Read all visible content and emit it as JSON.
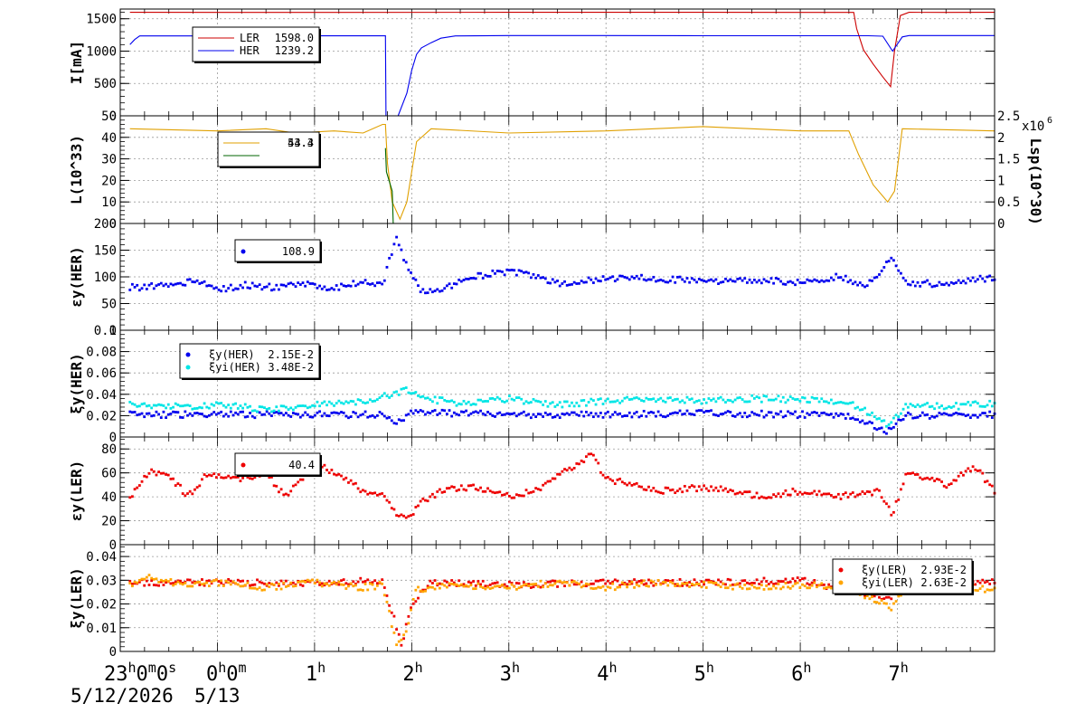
{
  "chart_data": [
    {
      "type": "line",
      "ylabel": "I[mA]",
      "ylim": [
        0,
        1650
      ],
      "yticks": [
        0,
        500,
        1000,
        1500
      ],
      "grid": true,
      "legend": {
        "placement": "top-left",
        "entries": [
          {
            "name": "LER",
            "value": "1598.0",
            "color": "#cc0000"
          },
          {
            "name": "HER",
            "value": "1239.2",
            "color": "#0000ee"
          }
        ]
      },
      "series": [
        {
          "name": "LER",
          "color": "#cc0000",
          "style": "line",
          "points": [
            [
              -0.9,
              1600
            ],
            [
              1.0,
              1598
            ],
            [
              3.0,
              1600
            ],
            [
              5.0,
              1599
            ],
            [
              6.55,
              1598
            ],
            [
              6.58,
              1350
            ],
            [
              6.65,
              1020
            ],
            [
              6.75,
              800
            ],
            [
              6.85,
              600
            ],
            [
              6.93,
              450
            ],
            [
              6.97,
              1000
            ],
            [
              7.03,
              1550
            ],
            [
              7.12,
              1600
            ],
            [
              7.5,
              1598
            ],
            [
              8.0,
              1600
            ]
          ]
        },
        {
          "name": "HER",
          "color": "#0000ee",
          "style": "line",
          "points": [
            [
              -0.9,
              1100
            ],
            [
              -0.85,
              1180
            ],
            [
              -0.8,
              1235
            ],
            [
              0.5,
              1235
            ],
            [
              1.0,
              1236
            ],
            [
              1.73,
              1236
            ],
            [
              1.735,
              0
            ],
            [
              1.86,
              0
            ],
            [
              1.95,
              350
            ],
            [
              2.0,
              700
            ],
            [
              2.05,
              950
            ],
            [
              2.1,
              1050
            ],
            [
              2.2,
              1130
            ],
            [
              2.3,
              1200
            ],
            [
              2.45,
              1235
            ],
            [
              3.0,
              1240
            ],
            [
              4.0,
              1240
            ],
            [
              5.0,
              1238
            ],
            [
              6.0,
              1238
            ],
            [
              6.7,
              1238
            ],
            [
              6.85,
              1230
            ],
            [
              6.95,
              1000
            ],
            [
              7.05,
              1220
            ],
            [
              7.12,
              1240
            ],
            [
              8.0,
              1240
            ]
          ]
        }
      ]
    },
    {
      "type": "line",
      "ylabel": "L(10^33)",
      "ylabel_right": "Lsp(10^30)",
      "right_multiplier": "x10^6",
      "ylim": [
        0,
        50
      ],
      "yticks": [
        0,
        10,
        20,
        30,
        40,
        50
      ],
      "right_ylim": [
        0,
        2.5
      ],
      "right_yticks": [
        "0",
        "0.5",
        "1",
        "1.5",
        "2",
        "2.5"
      ],
      "grid": true,
      "legend": {
        "placement": "top-left",
        "entries": [
          {
            "name": "",
            "value": "53.3",
            "color": "#e0a000"
          },
          {
            "name": "",
            "value": "44.4",
            "color": "#006600"
          }
        ]
      },
      "series": [
        {
          "name": "L",
          "color": "#e0a000",
          "style": "line",
          "points": [
            [
              -0.9,
              44
            ],
            [
              0.0,
              43
            ],
            [
              0.5,
              44
            ],
            [
              0.8,
              42
            ],
            [
              1.2,
              43
            ],
            [
              1.5,
              42
            ],
            [
              1.7,
              46
            ],
            [
              1.73,
              46
            ],
            [
              1.75,
              28
            ],
            [
              1.8,
              10
            ],
            [
              1.88,
              2
            ],
            [
              1.95,
              10
            ],
            [
              2.05,
              38
            ],
            [
              2.2,
              44
            ],
            [
              3.0,
              42
            ],
            [
              4.0,
              43
            ],
            [
              5.0,
              45
            ],
            [
              6.0,
              43
            ],
            [
              6.5,
              43
            ],
            [
              6.6,
              32
            ],
            [
              6.75,
              18
            ],
            [
              6.9,
              10
            ],
            [
              6.97,
              15
            ],
            [
              7.05,
              44
            ],
            [
              8.0,
              43
            ]
          ]
        },
        {
          "name": "Lsp",
          "color": "#006600",
          "style": "line",
          "points": [
            [
              1.73,
              35
            ],
            [
              1.74,
              24
            ],
            [
              1.78,
              18
            ],
            [
              1.8,
              15
            ],
            [
              1.81,
              0
            ]
          ]
        }
      ]
    },
    {
      "type": "scatter",
      "ylabel": "εy(HER)",
      "ylim": [
        0,
        200
      ],
      "yticks": [
        0,
        50,
        100,
        150,
        200
      ],
      "grid": true,
      "legend": {
        "placement": "top-left",
        "entries": [
          {
            "name": "",
            "value": "108.9",
            "color": "#0000ee"
          }
        ]
      },
      "series": [
        {
          "name": "emittance HER",
          "color": "#0000ee",
          "points": [
            [
              -0.9,
              80
            ],
            [
              -0.4,
              85
            ],
            [
              -0.2,
              95
            ],
            [
              0.0,
              75
            ],
            [
              0.3,
              85
            ],
            [
              0.6,
              80
            ],
            [
              0.9,
              85
            ],
            [
              1.2,
              80
            ],
            [
              1.5,
              90
            ],
            [
              1.7,
              85
            ],
            [
              1.85,
              180
            ],
            [
              1.9,
              140
            ],
            [
              2.0,
              100
            ],
            [
              2.1,
              75
            ],
            [
              2.3,
              72
            ],
            [
              2.5,
              95
            ],
            [
              2.8,
              105
            ],
            [
              3.0,
              110
            ],
            [
              3.3,
              100
            ],
            [
              3.6,
              85
            ],
            [
              3.9,
              95
            ],
            [
              4.3,
              100
            ],
            [
              4.7,
              95
            ],
            [
              5.0,
              90
            ],
            [
              5.5,
              95
            ],
            [
              6.0,
              90
            ],
            [
              6.4,
              100
            ],
            [
              6.7,
              85
            ],
            [
              6.95,
              135
            ],
            [
              7.1,
              90
            ],
            [
              7.5,
              85
            ],
            [
              8.0,
              100
            ]
          ]
        }
      ]
    },
    {
      "type": "scatter",
      "ylabel": "ξy(HER)",
      "ylim": [
        0,
        0.1
      ],
      "yticks": [
        0,
        0.02,
        0.04,
        0.06,
        0.08,
        0.1
      ],
      "grid": true,
      "legend": {
        "placement": "top-left",
        "entries": [
          {
            "name": "ξy(HER)",
            "value": "2.15E-2",
            "color": "#0000ee"
          },
          {
            "name": "ξyi(HER)",
            "value": "3.48E-2",
            "color": "#00e5e5"
          }
        ]
      },
      "series": [
        {
          "name": "ξy(HER)",
          "color": "#0000ee",
          "points": [
            [
              -0.9,
              0.021
            ],
            [
              0.5,
              0.021
            ],
            [
              1.0,
              0.021
            ],
            [
              1.7,
              0.021
            ],
            [
              1.85,
              0.012
            ],
            [
              2.0,
              0.024
            ],
            [
              2.5,
              0.022
            ],
            [
              3.0,
              0.021
            ],
            [
              4.0,
              0.021
            ],
            [
              5.0,
              0.022
            ],
            [
              6.0,
              0.021
            ],
            [
              6.5,
              0.02
            ],
            [
              6.75,
              0.01
            ],
            [
              6.9,
              0.005
            ],
            [
              7.1,
              0.02
            ],
            [
              8.0,
              0.021
            ]
          ]
        },
        {
          "name": "ξyi(HER)",
          "color": "#00e5e5",
          "points": [
            [
              -0.9,
              0.03
            ],
            [
              -0.5,
              0.028
            ],
            [
              0.0,
              0.03
            ],
            [
              0.5,
              0.026
            ],
            [
              1.0,
              0.03
            ],
            [
              1.5,
              0.033
            ],
            [
              1.8,
              0.04
            ],
            [
              1.95,
              0.045
            ],
            [
              2.2,
              0.035
            ],
            [
              2.5,
              0.032
            ],
            [
              3.0,
              0.036
            ],
            [
              3.5,
              0.03
            ],
            [
              4.0,
              0.034
            ],
            [
              4.5,
              0.035
            ],
            [
              5.0,
              0.034
            ],
            [
              5.5,
              0.036
            ],
            [
              6.0,
              0.035
            ],
            [
              6.5,
              0.033
            ],
            [
              6.75,
              0.02
            ],
            [
              6.9,
              0.01
            ],
            [
              7.1,
              0.03
            ],
            [
              7.5,
              0.028
            ],
            [
              8.0,
              0.032
            ]
          ]
        }
      ]
    },
    {
      "type": "scatter",
      "ylabel": "εy(LER)",
      "ylim": [
        0,
        90
      ],
      "yticks": [
        0,
        20,
        40,
        60,
        80
      ],
      "grid": true,
      "legend": {
        "placement": "top-left",
        "entries": [
          {
            "name": "",
            "value": "40.4",
            "color": "#ee0000"
          }
        ]
      },
      "series": [
        {
          "name": "emittance LER",
          "color": "#ee0000",
          "points": [
            [
              -0.9,
              40
            ],
            [
              -0.7,
              62
            ],
            [
              -0.5,
              58
            ],
            [
              -0.3,
              40
            ],
            [
              -0.1,
              60
            ],
            [
              0.2,
              55
            ],
            [
              0.5,
              60
            ],
            [
              0.7,
              40
            ],
            [
              0.9,
              58
            ],
            [
              1.1,
              65
            ],
            [
              1.3,
              55
            ],
            [
              1.5,
              45
            ],
            [
              1.7,
              40
            ],
            [
              1.8,
              30
            ],
            [
              1.95,
              20
            ],
            [
              2.1,
              35
            ],
            [
              2.3,
              45
            ],
            [
              2.6,
              48
            ],
            [
              3.0,
              40
            ],
            [
              3.3,
              45
            ],
            [
              3.6,
              62
            ],
            [
              3.85,
              75
            ],
            [
              4.0,
              55
            ],
            [
              4.3,
              50
            ],
            [
              4.6,
              45
            ],
            [
              5.0,
              48
            ],
            [
              5.3,
              45
            ],
            [
              5.6,
              40
            ],
            [
              6.0,
              45
            ],
            [
              6.4,
              40
            ],
            [
              6.8,
              45
            ],
            [
              6.95,
              25
            ],
            [
              7.1,
              60
            ],
            [
              7.5,
              50
            ],
            [
              7.8,
              65
            ],
            [
              8.0,
              45
            ]
          ]
        }
      ]
    },
    {
      "type": "scatter",
      "ylabel": "ξy(LER)",
      "ylim": [
        0,
        0.045
      ],
      "yticks": [
        0,
        0.01,
        0.02,
        0.03,
        0.04
      ],
      "grid": true,
      "legend": {
        "placement": "top-right",
        "entries": [
          {
            "name": "ξy(LER)",
            "value": "2.93E-2",
            "color": "#ee0000"
          },
          {
            "name": "ξyi(LER)",
            "value": "2.63E-2",
            "color": "#ffa500"
          }
        ]
      },
      "series": [
        {
          "name": "ξy(LER)",
          "color": "#ee0000",
          "points": [
            [
              -0.9,
              0.029
            ],
            [
              0.0,
              0.029
            ],
            [
              1.0,
              0.029
            ],
            [
              1.7,
              0.03
            ],
            [
              1.9,
              0.003
            ],
            [
              2.0,
              0.02
            ],
            [
              2.2,
              0.029
            ],
            [
              3.0,
              0.028
            ],
            [
              4.0,
              0.029
            ],
            [
              5.0,
              0.029
            ],
            [
              6.0,
              0.03
            ],
            [
              6.9,
              0.022
            ],
            [
              7.1,
              0.03
            ],
            [
              8.0,
              0.029
            ]
          ]
        },
        {
          "name": "ξyi(LER)",
          "color": "#ffa500",
          "points": [
            [
              -0.9,
              0.028
            ],
            [
              -0.7,
              0.031
            ],
            [
              -0.3,
              0.028
            ],
            [
              0.0,
              0.029
            ],
            [
              0.5,
              0.027
            ],
            [
              1.0,
              0.029
            ],
            [
              1.5,
              0.027
            ],
            [
              1.7,
              0.028
            ],
            [
              1.85,
              0.002
            ],
            [
              1.95,
              0.01
            ],
            [
              2.05,
              0.026
            ],
            [
              2.3,
              0.028
            ],
            [
              3.0,
              0.027
            ],
            [
              3.5,
              0.029
            ],
            [
              4.0,
              0.027
            ],
            [
              4.5,
              0.029
            ],
            [
              5.0,
              0.028
            ],
            [
              5.5,
              0.027
            ],
            [
              6.0,
              0.028
            ],
            [
              6.5,
              0.027
            ],
            [
              6.95,
              0.018
            ],
            [
              7.1,
              0.03
            ],
            [
              7.5,
              0.028
            ],
            [
              8.0,
              0.026
            ]
          ]
        }
      ]
    }
  ],
  "time_axis": {
    "xlim": [
      -1.0,
      8.0
    ],
    "hour_labels": [
      {
        "x": 1,
        "text": "1",
        "sup": "h"
      },
      {
        "x": 2,
        "text": "2",
        "sup": "h"
      },
      {
        "x": 3,
        "text": "3",
        "sup": "h"
      },
      {
        "x": 4,
        "text": "4",
        "sup": "h"
      },
      {
        "x": 5,
        "text": "5",
        "sup": "h"
      },
      {
        "x": 6,
        "text": "6",
        "sup": "h"
      },
      {
        "x": 7,
        "text": "7",
        "sup": "h"
      }
    ],
    "start_label": "23h0m0s",
    "midnight_label": "0h0m",
    "date_start": "5/12/2026",
    "date_next": "5/13"
  }
}
